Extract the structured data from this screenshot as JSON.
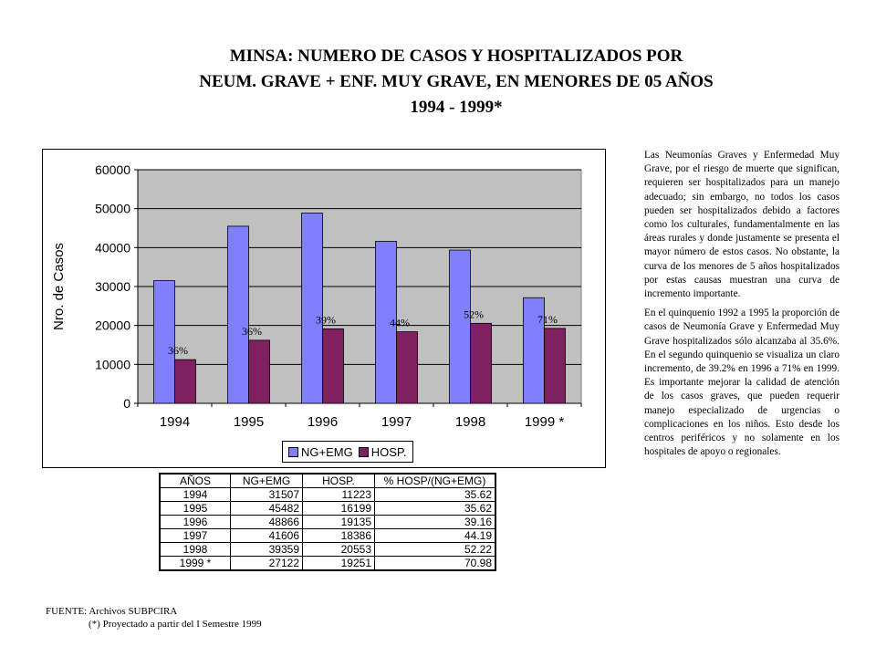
{
  "title": {
    "line1": "MINSA: NUMERO DE CASOS Y HOSPITALIZADOS POR",
    "line2": "NEUM. GRAVE + ENF. MUY GRAVE, EN MENORES DE 05 AÑOS",
    "line3": "1994 - 1999*"
  },
  "chart_data": {
    "type": "bar",
    "categories": [
      "1994",
      "1995",
      "1996",
      "1997",
      "1998",
      "1999 *"
    ],
    "series": [
      {
        "name": "NG+EMG",
        "values": [
          31507,
          45482,
          48866,
          41606,
          39359,
          27122
        ],
        "color": "#8080ff"
      },
      {
        "name": "HOSP.",
        "values": [
          11223,
          16199,
          19135,
          18386,
          20553,
          19251
        ],
        "color": "#802060"
      }
    ],
    "data_labels": [
      "36%",
      "36%",
      "39%",
      "44%",
      "52%",
      "71%"
    ],
    "ylabel": "Nro. de Casos",
    "xlabel": "",
    "ylim": [
      0,
      60000
    ],
    "yticks": [
      0,
      10000,
      20000,
      30000,
      40000,
      50000,
      60000
    ],
    "grid": true,
    "plot_background": "#c0c0c0",
    "legend_position": "bottom"
  },
  "table": {
    "headers": [
      "AÑOS",
      "NG+EMG",
      "HOSP.",
      "% HOSP/(NG+EMG)"
    ],
    "rows": [
      [
        "1994",
        "31507",
        "11223",
        "35.62"
      ],
      [
        "1995",
        "45482",
        "16199",
        "35.62"
      ],
      [
        "1996",
        "48866",
        "19135",
        "39.16"
      ],
      [
        "1997",
        "41606",
        "18386",
        "44.19"
      ],
      [
        "1998",
        "39359",
        "20553",
        "52.22"
      ],
      [
        "1999 *",
        "27122",
        "19251",
        "70.98"
      ]
    ]
  },
  "side_text": {
    "p1": "Las Neumonías Graves y Enfermedad Muy Grave, por el riesgo de muerte que significan, requieren ser hospitalizados para un manejo adecuado; sin embargo, no todos los casos pueden ser hospitalizados debido a factores como los culturales, fundamentalmente en las áreas rurales y donde justamente se presenta el mayor número de estos casos. No obstante, la curva de los menores de 5 años hospitalizados por estas causas muestran una curva de incremento importante.",
    "p2": "En el quinquenio 1992 a 1995 la proporción de casos de Neumonía Grave y Enfermedad Muy Grave hospitalizados sólo alcanzaba al 35.6%. En el segundo quinquenio se visualiza un claro incremento, de 39.2% en 1996 a 71% en 1999. Es importante mejorar la calidad de atención de los casos graves, que pueden requerir manejo especializado de urgencias o complicaciones en los niños. Esto desde los centros periféricos y no solamente en los hospitales de apoyo o regionales."
  },
  "source": {
    "line1": "FUENTE: Archivos SUBPCIRA",
    "line2": "(*) Proyectado a partir del I Semestre 1999"
  }
}
